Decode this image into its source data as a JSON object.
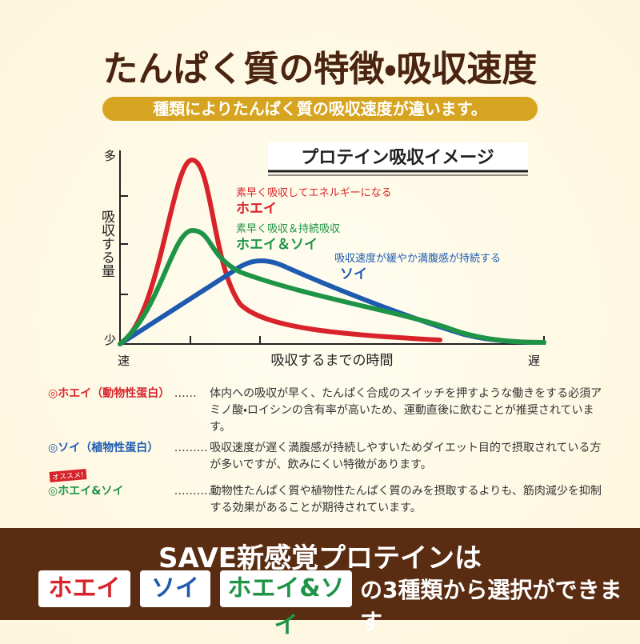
{
  "header": {
    "title": "たんぱく質の特徴・吸収速度",
    "subtitle": "種類によりたんぱく質の吸収速度が違います。"
  },
  "chart": {
    "title": "プロテイン吸収イメージ",
    "y_axis": {
      "label": "吸収する量",
      "top": "多",
      "bottom": "少"
    },
    "x_axis": {
      "label": "吸収するまでの時間",
      "left": "速",
      "right": "遅"
    },
    "curves": [
      {
        "note": "素早く吸収してエネルギーになる",
        "name": "ホエイ"
      },
      {
        "note": "素早く吸収＆持続吸収",
        "name": "ホエイ＆ソイ"
      },
      {
        "note": "吸収速度が緩やか満腹感が持続する",
        "name": "ソイ"
      }
    ]
  },
  "descriptions": [
    {
      "name": "◎ホエイ（動物性蛋白）",
      "leader": "……",
      "text": "体内への吸収が早く、たんぱく合成のスイッチを押すような働きをする必須アミノ酸・ロイシンの含有率が高いため、運動直後に飲むことが推奨されています。"
    },
    {
      "name": "◎ソイ（植物性蛋白）",
      "leader": "………",
      "text": "吸収速度が遅く満腹感が持続しやすいためダイエット目的で摂取されている方が多いですが、飲みにくい特徴があります。"
    },
    {
      "badge": "オススメ!",
      "name": "◎ホエイ&ソイ",
      "leader": "…………",
      "text": "動物性たんぱく質や植物性たんぱく質のみを摂取するよりも、筋肉減少を抑制する効果があることが期待されています。"
    }
  ],
  "footer": {
    "headline": "SAVE新感覚プロテインは",
    "options": [
      "ホエイ",
      "ソイ",
      "ホエイ&ソイ"
    ],
    "suffix": "の3種類から選択ができます"
  }
}
